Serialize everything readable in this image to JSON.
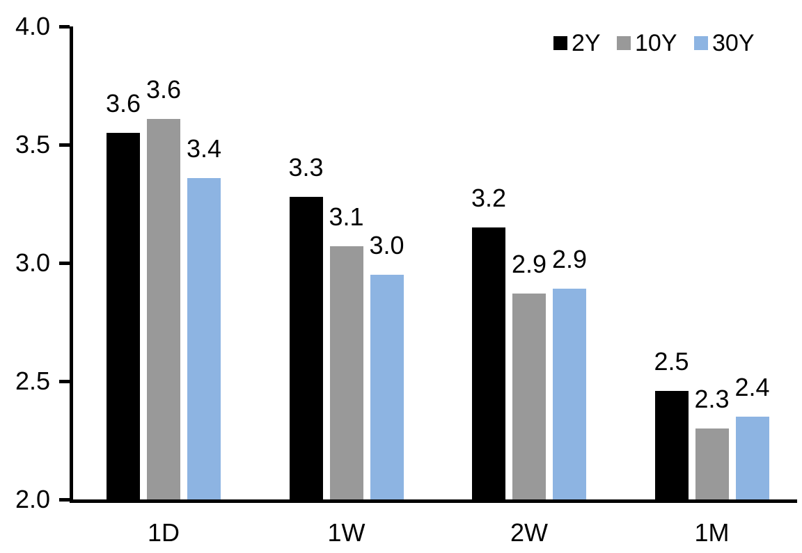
{
  "chart_data": {
    "type": "bar",
    "title": "",
    "xlabel": "",
    "ylabel": "",
    "categories": [
      "1D",
      "1W",
      "2W",
      "1M"
    ],
    "series": [
      {
        "name": "2Y",
        "color": "#000000",
        "values": [
          3.6,
          3.3,
          3.2,
          2.5
        ],
        "values_precise": [
          3.55,
          3.28,
          3.15,
          2.46
        ],
        "labels": [
          "3.6",
          "3.3",
          "3.2",
          "2.5"
        ]
      },
      {
        "name": "10Y",
        "color": "#999999",
        "values": [
          3.6,
          3.1,
          2.9,
          2.3
        ],
        "values_precise": [
          3.61,
          3.07,
          2.87,
          2.3
        ],
        "labels": [
          "3.6",
          "3.1",
          "2.9",
          "2.3"
        ]
      },
      {
        "name": "30Y",
        "color": "#8DB4E2",
        "values": [
          3.4,
          3.0,
          2.9,
          2.4
        ],
        "values_precise": [
          3.36,
          2.95,
          2.89,
          2.35
        ],
        "labels": [
          "3.4",
          "3.0",
          "2.9",
          "2.4"
        ]
      }
    ],
    "ylim": [
      2.0,
      4.0
    ],
    "yticks": [
      4.0,
      3.5,
      3.0,
      2.5,
      2.0
    ],
    "ytick_labels": [
      "4.0",
      "3.5",
      "3.0",
      "2.5",
      "2.0"
    ],
    "grid": false,
    "legend_position": "top-right",
    "axis_color": "#000000",
    "text_color": "#000000",
    "background_color": "#ffffff"
  }
}
